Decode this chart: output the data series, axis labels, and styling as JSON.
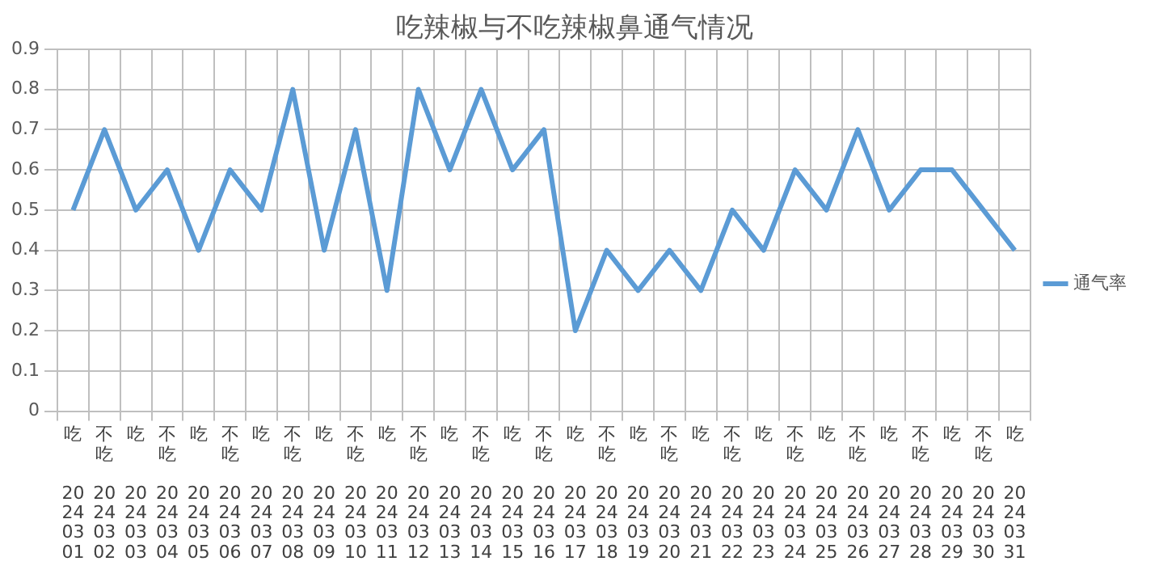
{
  "chart_data": {
    "type": "line",
    "title": "吃辣椒与不吃辣椒鼻通气情况",
    "categories": [
      "吃 20240301",
      "不吃 20240302",
      "吃 20240303",
      "不吃 20240304",
      "吃 20240305",
      "不吃 20240306",
      "吃 20240307",
      "不吃 20240308",
      "吃 20240309",
      "不吃 20240310",
      "吃 20240311",
      "不吃 20240312",
      "吃 20240313",
      "不吃 20240314",
      "吃 20240315",
      "不吃 20240316",
      "吃 20240317",
      "不吃 20240318",
      "吃 20240319",
      "不吃 20240320",
      "吃 20240321",
      "不吃 20240322",
      "吃 20240323",
      "不吃 20240324",
      "吃 20240325",
      "不吃 20240326",
      "吃 20240327",
      "不吃 20240328",
      "吃 20240329",
      "不吃 20240330",
      "吃 20240331"
    ],
    "series": [
      {
        "name": "通气率",
        "color": "#5b9bd5",
        "values": [
          0.5,
          0.7,
          0.5,
          0.6,
          0.4,
          0.6,
          0.5,
          0.8,
          0.4,
          0.7,
          0.3,
          0.8,
          0.6,
          0.8,
          0.6,
          0.7,
          0.2,
          0.4,
          0.3,
          0.4,
          0.3,
          0.5,
          0.4,
          0.6,
          0.5,
          0.7,
          0.5,
          0.6,
          0.6,
          0.5,
          0.4
        ]
      }
    ],
    "ylim": [
      0,
      0.9
    ],
    "yticks": [
      0,
      0.1,
      0.2,
      0.3,
      0.4,
      0.5,
      0.6,
      0.7,
      0.8,
      0.9
    ],
    "grid": true,
    "legend": "right",
    "marker": "none",
    "line_style": "solid"
  }
}
